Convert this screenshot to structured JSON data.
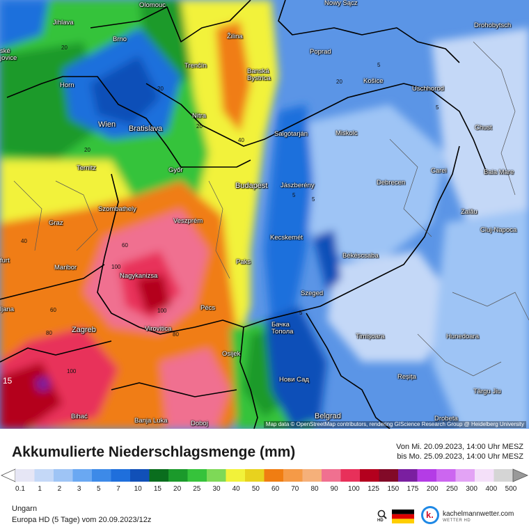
{
  "map": {
    "cities": [
      {
        "name": "Olomouc"
      },
      {
        "name": "Nowy Sącz"
      },
      {
        "name": "Drohobytsch"
      },
      {
        "name": "Jihlava"
      },
      {
        "name": "Brno"
      },
      {
        "name": "Žilina"
      },
      {
        "name": "Poprad"
      },
      {
        "name": "Trenčín"
      },
      {
        "name": "Banská Bystrica"
      },
      {
        "name": "Košice"
      },
      {
        "name": "Uschhorod"
      },
      {
        "name": "Horn"
      },
      {
        "name": "Nitra"
      },
      {
        "name": "Wien"
      },
      {
        "name": "Bratislava"
      },
      {
        "name": "Salgótarján"
      },
      {
        "name": "Miskolc"
      },
      {
        "name": "Chust"
      },
      {
        "name": "Ternitz"
      },
      {
        "name": "Győr"
      },
      {
        "name": "Carei"
      },
      {
        "name": "Budapest"
      },
      {
        "name": "Jászberény"
      },
      {
        "name": "Debrecen"
      },
      {
        "name": "Baia Mare"
      },
      {
        "name": "Szombathely"
      },
      {
        "name": "Zalău"
      },
      {
        "name": "Graz"
      },
      {
        "name": "Veszprém"
      },
      {
        "name": "Kecskemét"
      },
      {
        "name": "Cluj-Napoca"
      },
      {
        "name": "Maribor"
      },
      {
        "name": "Paks"
      },
      {
        "name": "Békéscsaba"
      },
      {
        "name": "Nagykanizsa"
      },
      {
        "name": "Szeged"
      },
      {
        "name": "Pécs"
      },
      {
        "name": "Zagreb"
      },
      {
        "name": "Virovitica"
      },
      {
        "name": "Бачка Топола"
      },
      {
        "name": "Timișoara"
      },
      {
        "name": "Hunedoara"
      },
      {
        "name": "Osijek"
      },
      {
        "name": "Нови Сад"
      },
      {
        "name": "Reșița"
      },
      {
        "name": "Târgu Jiu"
      },
      {
        "name": "Bihać"
      },
      {
        "name": "Banja Luka"
      },
      {
        "name": "Doboj"
      },
      {
        "name": "Belgrad"
      },
      {
        "name": "Drobeta"
      },
      {
        "name": "ljana"
      },
      {
        "name": "ské jovice"
      },
      {
        "name": "furt"
      }
    ],
    "contour_labels": [
      "20",
      "20",
      "20",
      "5",
      "20",
      "5",
      "40",
      "20",
      "5",
      "5",
      "40",
      "60",
      "100",
      "100",
      "60",
      "80",
      "100",
      "80",
      "5",
      "15"
    ],
    "attribution": "Map data © OpenStreetMap contributors, rendering GIScience Research Group @ Heidelberg University"
  },
  "legend": {
    "title": "Akkumulierte Niederschlagsmenge (mm)",
    "valid_from": "Von Mi. 20.09.2023, 14:00 Uhr MESZ",
    "valid_to": "bis Mo. 25.09.2023, 14:00 Uhr MESZ",
    "ticks": [
      "0.1",
      "1",
      "2",
      "3",
      "5",
      "7",
      "10",
      "15",
      "20",
      "25",
      "30",
      "40",
      "50",
      "60",
      "70",
      "80",
      "90",
      "100",
      "125",
      "150",
      "175",
      "200",
      "250",
      "300",
      "400",
      "500"
    ],
    "colors": [
      "#e6e6f5",
      "#c4d8f7",
      "#9ec4f5",
      "#6aa8f2",
      "#3d8ae8",
      "#1f6fdc",
      "#1150b8",
      "#0a6e1e",
      "#1b9a2b",
      "#36c33b",
      "#7ed957",
      "#f2f23a",
      "#e8d21e",
      "#f07d12",
      "#f59a47",
      "#f5b07a",
      "#f07090",
      "#e8305a",
      "#b4001e",
      "#820a28",
      "#7a1fa0",
      "#b43ce6",
      "#cc66f0",
      "#e3a3f5",
      "#f4e0f9",
      "#d5d5d5"
    ],
    "region": "Ungarn",
    "model": "Europa HD (5 Tage) vom  20.09.2023/12z"
  },
  "brand": {
    "name": "kachelmannwetter.com",
    "sub": "WETTER HD",
    "logo_letter": "k.",
    "zoom_label": "HD"
  }
}
